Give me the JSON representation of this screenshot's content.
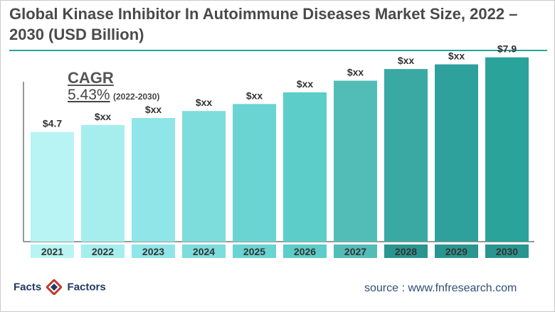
{
  "header": {
    "title": "Global Kinase Inhibitor In Autoimmune Diseases Market Size, 2022 – 2030 (USD Billion)"
  },
  "cagr": {
    "label": "CAGR",
    "value": "5.43%",
    "period": "(2022-2030)"
  },
  "footer": {
    "logo_left": "Facts",
    "logo_right": "Factors",
    "source": "source : www.fnfresearch.com"
  },
  "colors": {
    "accent": "#2aa39b",
    "bars": [
      "#b8f4f4",
      "#a6eeee",
      "#8fe5e7",
      "#7ddcdc",
      "#6ad4d2",
      "#5ccdc8",
      "#52bdb7",
      "#3aa9a4",
      "#2fa19d",
      "#2aa39b"
    ],
    "year_labels": [
      "#b8f4f4",
      "#a6eeee",
      "#8fe5e7",
      "#7ddcdc",
      "#6ad4d2",
      "#5ccdc8",
      "#52bdb7",
      "#2a958f",
      "#2a958f",
      "#2a958f"
    ]
  },
  "chart_data": {
    "type": "bar",
    "categories": [
      "2021",
      "2022",
      "2023",
      "2024",
      "2025",
      "2026",
      "2027",
      "2028",
      "2029",
      "2030"
    ],
    "values": [
      4.7,
      5.0,
      5.3,
      5.6,
      5.9,
      6.4,
      6.9,
      7.4,
      7.6,
      7.9
    ],
    "data_labels": [
      "$4.7",
      "$xx",
      "$xx",
      "$xx",
      "$xx",
      "$xx",
      "$xx",
      "$xx",
      "$xx",
      "$7.9"
    ],
    "title": "Global Kinase Inhibitor In Autoimmune Diseases Market Size, 2022 – 2030 (USD Billion)",
    "xlabel": "",
    "ylabel": "",
    "ylim": [
      0,
      8.5
    ]
  }
}
